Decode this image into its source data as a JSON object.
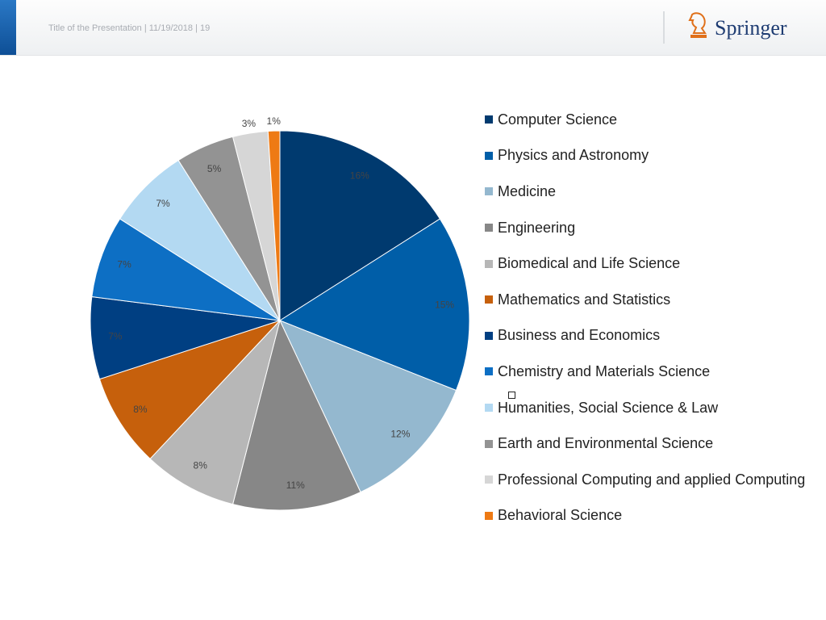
{
  "header": {
    "title": "Title of the Presentation | 11/19/2018 | 19",
    "logo_text": "Springer",
    "accent_color": "#1565b5"
  },
  "chart_data": {
    "type": "pie",
    "title": "",
    "legend_position": "right",
    "data_labels": "percent",
    "start_angle_deg": 0,
    "direction": "clockwise",
    "slices": [
      {
        "label": "Computer Science",
        "value": 16,
        "display": "16%",
        "color": "#003a6f"
      },
      {
        "label": "Physics and Astronomy",
        "value": 15,
        "display": "15%",
        "color": "#005ea8"
      },
      {
        "label": "Medicine",
        "value": 12,
        "display": "12%",
        "color": "#94b8cf"
      },
      {
        "label": "Engineering",
        "value": 11,
        "display": "11%",
        "color": "#878787"
      },
      {
        "label": "Biomedical and Life Science",
        "value": 8,
        "display": "8%",
        "color": "#b7b7b7"
      },
      {
        "label": "Mathematics and Statistics",
        "value": 8,
        "display": "8%",
        "color": "#c6600c"
      },
      {
        "label": "Business and Economics",
        "value": 7,
        "display": "7%",
        "color": "#003f82"
      },
      {
        "label": "Chemistry and Materials Science",
        "value": 7,
        "display": "7%",
        "color": "#0d6fc4"
      },
      {
        "label": "Humanities, Social Science & Law",
        "value": 7,
        "display": "7%",
        "color": "#b3d9f2"
      },
      {
        "label": "Earth and Environmental Science",
        "value": 5,
        "display": "5%",
        "color": "#939393"
      },
      {
        "label": "Professional Computing and applied Computing",
        "value": 3,
        "display": "3%",
        "color": "#d6d6d6"
      },
      {
        "label": "Behavioral Science",
        "value": 1,
        "display": "1%",
        "color": "#ee7a14"
      }
    ]
  }
}
